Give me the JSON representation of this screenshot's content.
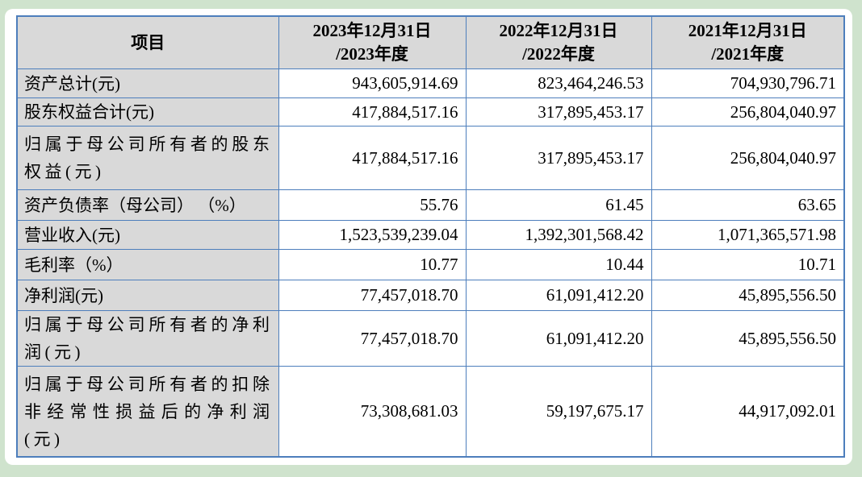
{
  "document": {
    "background_color": "#cfe3cd",
    "page_color": "#ffffff",
    "accent_border_color": "#4d7ebc",
    "header_fill_color": "#d9d9d9"
  },
  "table": {
    "header": {
      "item": "项目",
      "col_2023": {
        "line1": "2023年12月31日",
        "line2": "/2023年度"
      },
      "col_2022": {
        "line1": "2022年12月31日",
        "line2": "/2022年度"
      },
      "col_2021": {
        "line1": "2021年12月31日",
        "line2": "/2021年度"
      }
    },
    "rows": [
      {
        "label": "资产总计(元)",
        "v2023": "943,605,914.69",
        "v2022": "823,464,246.53",
        "v2021": "704,930,796.71"
      },
      {
        "label": "股东权益合计(元)",
        "v2023": "417,884,517.16",
        "v2022": "317,895,453.17",
        "v2021": "256,804,040.97"
      },
      {
        "label": "归属于母公司所有者的股东权益(元)",
        "v2023": "417,884,517.16",
        "v2022": "317,895,453.17",
        "v2021": "256,804,040.97"
      },
      {
        "label": "资产负债率（母公司） （%）",
        "v2023": "55.76",
        "v2022": "61.45",
        "v2021": "63.65"
      },
      {
        "label": "营业收入(元)",
        "v2023": "1,523,539,239.04",
        "v2022": "1,392,301,568.42",
        "v2021": "1,071,365,571.98"
      },
      {
        "label": "毛利率（%）",
        "v2023": "10.77",
        "v2022": "10.44",
        "v2021": "10.71"
      },
      {
        "label": "净利润(元)",
        "v2023": "77,457,018.70",
        "v2022": "61,091,412.20",
        "v2021": "45,895,556.50"
      },
      {
        "label": "归属于母公司所有者的净利润(元)",
        "v2023": "77,457,018.70",
        "v2022": "61,091,412.20",
        "v2021": "45,895,556.50"
      },
      {
        "label": "归属于母公司所有者的扣除非经常性损益后的净利润(元)",
        "v2023": "73,308,681.03",
        "v2022": "59,197,675.17",
        "v2021": "44,917,092.01"
      }
    ]
  }
}
